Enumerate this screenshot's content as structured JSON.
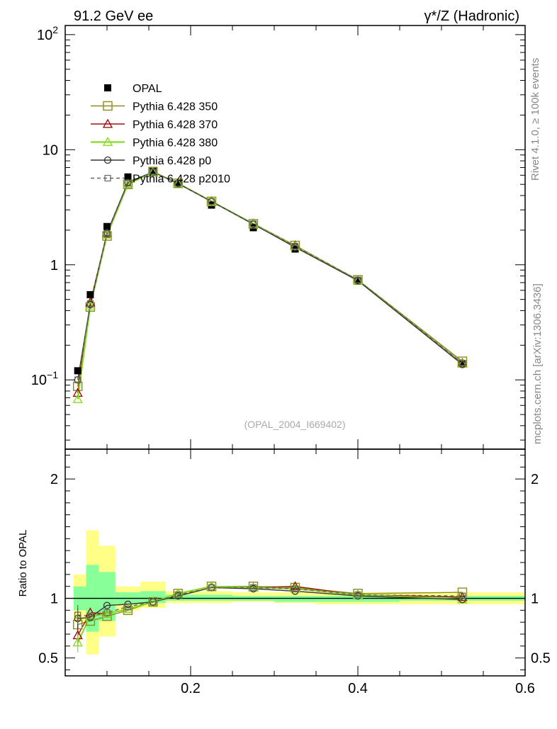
{
  "header": {
    "left": "91.2 GeV ee",
    "right": "γ*/Z (Hadronic)"
  },
  "side": {
    "rivet": "Rivet 4.1.0, ≥ 100k events",
    "source": "mcplots.cern.ch [arXiv:1306.3436]"
  },
  "watermark": "(OPAL_2004_I669402)",
  "colors": {
    "opal": "#000000",
    "p350": "#8c8c1a",
    "p370": "#a01010",
    "p380": "#88dd22",
    "p0": "#333333",
    "p2010": "#666666",
    "band_outer": "#ffff88",
    "band_inner": "#88ff99"
  },
  "chart_data": [
    {
      "type": "line",
      "panel": "main",
      "yscale": "log",
      "ylim": [
        0.025,
        120
      ],
      "xlim": [
        0.05,
        0.6
      ],
      "y_tick_labels": [
        "10^2",
        "10",
        "1",
        "10^-1"
      ],
      "legend": [
        "OPAL",
        "Pythia 6.428 350",
        "Pythia 6.428 370",
        "Pythia 6.428 380",
        "Pythia 6.428 p0",
        "Pythia 6.428 p2010"
      ],
      "legend_position": "top-left",
      "x": [
        0.065,
        0.08,
        0.1,
        0.125,
        0.155,
        0.185,
        0.225,
        0.275,
        0.325,
        0.4,
        0.525
      ],
      "series": [
        {
          "name": "OPAL",
          "key": "opal",
          "marker": "filled-square",
          "values": [
            0.12,
            0.55,
            2.15,
            5.8,
            6.6,
            5.0,
            3.3,
            2.1,
            1.37,
            0.72,
            0.138
          ]
        },
        {
          "name": "Pythia 6.428 350",
          "key": "p350",
          "marker": "open-square",
          "values": [
            0.088,
            0.43,
            1.78,
            5.0,
            6.45,
            5.1,
            3.55,
            2.27,
            1.47,
            0.74,
            0.145
          ]
        },
        {
          "name": "Pythia 6.428 370",
          "key": "p370",
          "marker": "open-triangle",
          "values": [
            0.077,
            0.47,
            1.86,
            5.0,
            6.4,
            5.12,
            3.57,
            2.28,
            1.47,
            0.73,
            0.14
          ]
        },
        {
          "name": "Pythia 6.428 380",
          "key": "p380",
          "marker": "open-triangle",
          "values": [
            0.068,
            0.44,
            1.83,
            5.0,
            6.4,
            5.1,
            3.55,
            2.27,
            1.45,
            0.73,
            0.138
          ]
        },
        {
          "name": "Pythia 6.428 p0",
          "key": "p0",
          "marker": "open-circle",
          "values": [
            0.1,
            0.45,
            1.9,
            5.2,
            6.4,
            5.08,
            3.55,
            2.25,
            1.42,
            0.73,
            0.136
          ]
        },
        {
          "name": "Pythia 6.428 p2010",
          "key": "p2010",
          "marker": "small-square",
          "values": [
            0.1,
            0.46,
            1.87,
            5.1,
            6.4,
            5.1,
            3.55,
            2.27,
            1.45,
            0.74,
            0.14
          ]
        }
      ]
    },
    {
      "type": "line",
      "panel": "ratio",
      "ylabel": "Ratio to OPAL",
      "ylim": [
        0.35,
        2.25
      ],
      "xlim": [
        0.05,
        0.6
      ],
      "y_tick_labels": [
        "2",
        "1",
        "0.5"
      ],
      "x_tick_labels": [
        "0.2",
        "0.4",
        "0.6"
      ],
      "bins": [
        0.06,
        0.075,
        0.09,
        0.11,
        0.14,
        0.17,
        0.2,
        0.25,
        0.3,
        0.35,
        0.45,
        0.6
      ],
      "band_outer": [
        [
          0.8,
          1.2
        ],
        [
          0.53,
          1.57
        ],
        [
          0.68,
          1.44
        ],
        [
          0.9,
          1.1
        ],
        [
          0.92,
          1.14
        ],
        [
          0.96,
          1.06
        ],
        [
          0.96,
          1.06
        ],
        [
          0.97,
          1.05
        ],
        [
          0.96,
          1.05
        ],
        [
          0.95,
          1.05
        ],
        [
          0.95,
          1.05
        ]
      ],
      "band_inner": [
        [
          0.9,
          1.1
        ],
        [
          0.72,
          1.28
        ],
        [
          0.81,
          1.22
        ],
        [
          0.95,
          1.05
        ],
        [
          0.96,
          1.06
        ],
        [
          0.98,
          1.03
        ],
        [
          0.98,
          1.03
        ],
        [
          0.98,
          1.02
        ],
        [
          0.97,
          1.02
        ],
        [
          0.97,
          1.02
        ],
        [
          0.98,
          1.02
        ]
      ],
      "x": [
        0.065,
        0.08,
        0.1,
        0.125,
        0.155,
        0.185,
        0.225,
        0.275,
        0.325,
        0.4,
        0.525
      ],
      "series": [
        {
          "name": "Pythia 6.428 350",
          "key": "p350",
          "marker": "open-square",
          "values": [
            0.78,
            0.81,
            0.85,
            0.9,
            0.97,
            1.04,
            1.1,
            1.1,
            1.09,
            1.04,
            1.05
          ]
        },
        {
          "name": "Pythia 6.428 370",
          "key": "p370",
          "marker": "open-triangle",
          "values": [
            0.69,
            0.88,
            0.87,
            0.91,
            0.97,
            1.04,
            1.1,
            1.09,
            1.1,
            1.03,
            1.01
          ]
        },
        {
          "name": "Pythia 6.428 380",
          "key": "p380",
          "marker": "open-triangle",
          "values": [
            0.63,
            0.85,
            0.87,
            0.91,
            0.97,
            1.04,
            1.1,
            1.09,
            1.08,
            1.03,
            0.99
          ]
        },
        {
          "name": "Pythia 6.428 p0",
          "key": "p0",
          "marker": "open-circle",
          "values": [
            0.83,
            0.84,
            0.94,
            0.95,
            0.97,
            1.02,
            1.09,
            1.08,
            1.06,
            1.02,
            0.99
          ]
        },
        {
          "name": "Pythia 6.428 p2010",
          "key": "p2010",
          "marker": "small-square",
          "values": [
            0.86,
            0.85,
            0.88,
            0.93,
            0.97,
            1.03,
            1.09,
            1.09,
            1.08,
            1.03,
            1.02
          ]
        }
      ]
    }
  ]
}
